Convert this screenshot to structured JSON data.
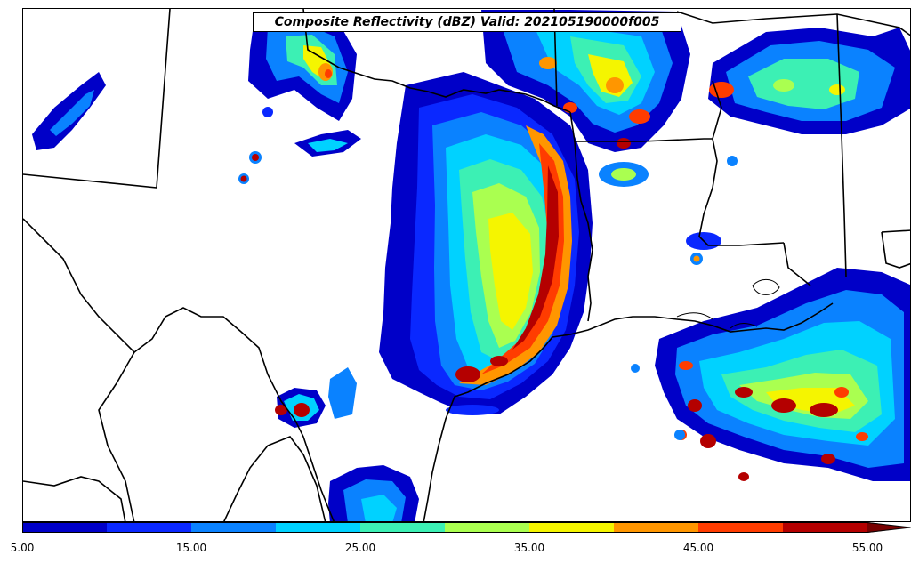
{
  "title": "Composite Reflectivity (dBZ) Valid: 202105190000f005",
  "colorbar": {
    "tick_labels": [
      "5.00",
      "15.00",
      "25.00",
      "35.00",
      "45.00",
      "55.00"
    ],
    "bins": [
      {
        "from": 5,
        "to": 10,
        "color": "#0000c8"
      },
      {
        "from": 10,
        "to": 15,
        "color": "#0a28ff"
      },
      {
        "from": 15,
        "to": 20,
        "color": "#0a82ff"
      },
      {
        "from": 20,
        "to": 25,
        "color": "#00d2ff"
      },
      {
        "from": 25,
        "to": 30,
        "color": "#3cf0b4"
      },
      {
        "from": 30,
        "to": 35,
        "color": "#aaff50"
      },
      {
        "from": 35,
        "to": 40,
        "color": "#f5f500"
      },
      {
        "from": 40,
        "to": 45,
        "color": "#ff9600"
      },
      {
        "from": 45,
        "to": 50,
        "color": "#ff3c00"
      },
      {
        "from": 50,
        "to": 55,
        "color": "#b40000"
      }
    ],
    "extend": "max",
    "overflow_color": "#780000"
  }
}
